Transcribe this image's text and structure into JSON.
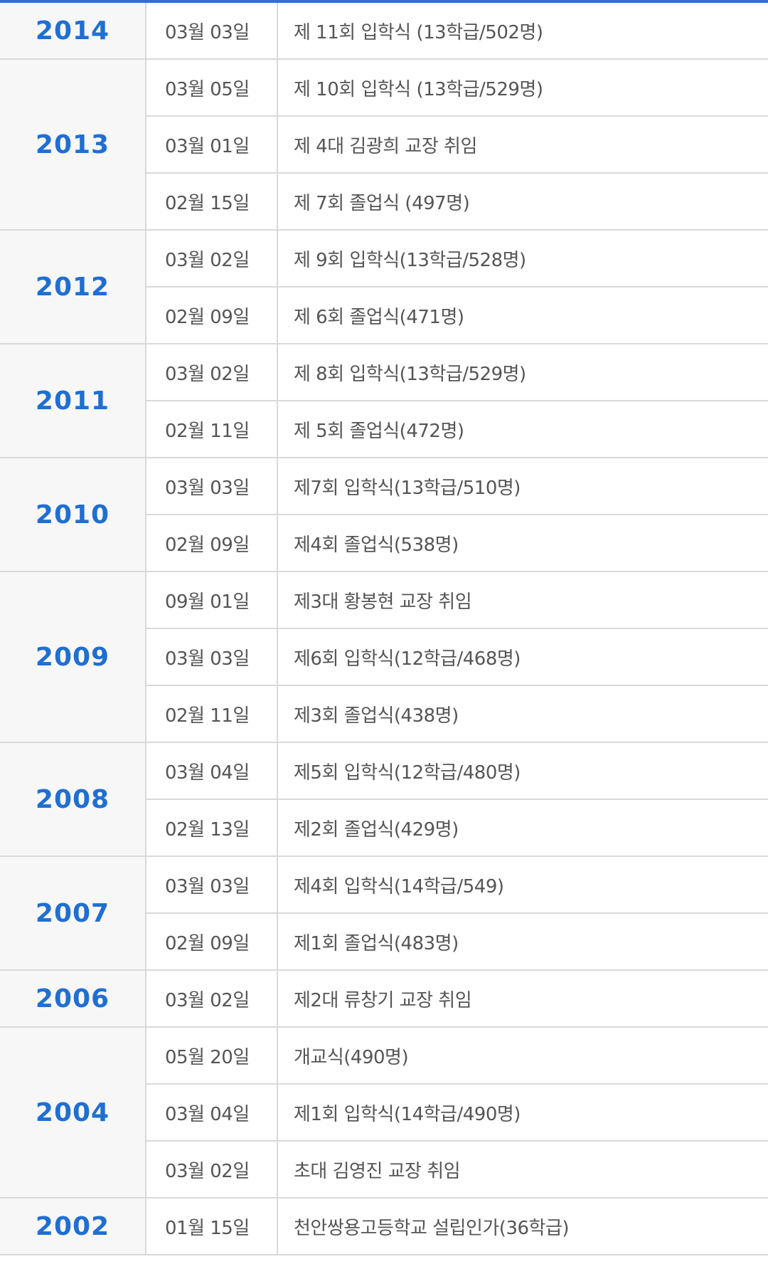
{
  "history": [
    {
      "year": "2014",
      "events": [
        {
          "date": "03월 03일",
          "text": "제 11회 입학식 (13학급/502명)"
        }
      ]
    },
    {
      "year": "2013",
      "events": [
        {
          "date": "03월 05일",
          "text": "제 10회 입학식 (13학급/529명)"
        },
        {
          "date": "03월 01일",
          "text": "제 4대 김광희 교장 취임"
        },
        {
          "date": "02월 15일",
          "text": "제 7회 졸업식 (497명)"
        }
      ]
    },
    {
      "year": "2012",
      "events": [
        {
          "date": "03월 02일",
          "text": "제 9회 입학식(13학급/528명)"
        },
        {
          "date": "02월 09일",
          "text": "제 6회 졸업식(471명)"
        }
      ]
    },
    {
      "year": "2011",
      "events": [
        {
          "date": "03월 02일",
          "text": "제 8회 입학식(13학급/529명)"
        },
        {
          "date": "02월 11일",
          "text": "제 5회 졸업식(472명)"
        }
      ]
    },
    {
      "year": "2010",
      "events": [
        {
          "date": "03월 03일",
          "text": "제7회 입학식(13학급/510명)"
        },
        {
          "date": "02월 09일",
          "text": "제4회 졸업식(538명)"
        }
      ]
    },
    {
      "year": "2009",
      "events": [
        {
          "date": "09월 01일",
          "text": "제3대 황봉현 교장 취임"
        },
        {
          "date": "03월 03일",
          "text": "제6회 입학식(12학급/468명)"
        },
        {
          "date": "02월 11일",
          "text": "제3회 졸업식(438명)"
        }
      ]
    },
    {
      "year": "2008",
      "events": [
        {
          "date": "03월 04일",
          "text": "제5회 입학식(12학급/480명)"
        },
        {
          "date": "02월 13일",
          "text": "제2회 졸업식(429명)"
        }
      ]
    },
    {
      "year": "2007",
      "events": [
        {
          "date": "03월 03일",
          "text": "제4회 입학식(14학급/549)"
        },
        {
          "date": "02월 09일",
          "text": "제1회 졸업식(483명)"
        }
      ]
    },
    {
      "year": "2006",
      "events": [
        {
          "date": "03월 02일",
          "text": "제2대 류창기 교장 취임"
        }
      ]
    },
    {
      "year": "2004",
      "events": [
        {
          "date": "05월 20일",
          "text": "개교식(490명)"
        },
        {
          "date": "03월 04일",
          "text": "제1회 입학식(14학급/490명)"
        },
        {
          "date": "03월 02일",
          "text": "초대 김영진 교장 취임"
        }
      ]
    },
    {
      "year": "2002",
      "events": [
        {
          "date": "01월 15일",
          "text": "천안쌍용고등학교 설립인가(36학급)"
        }
      ]
    }
  ]
}
